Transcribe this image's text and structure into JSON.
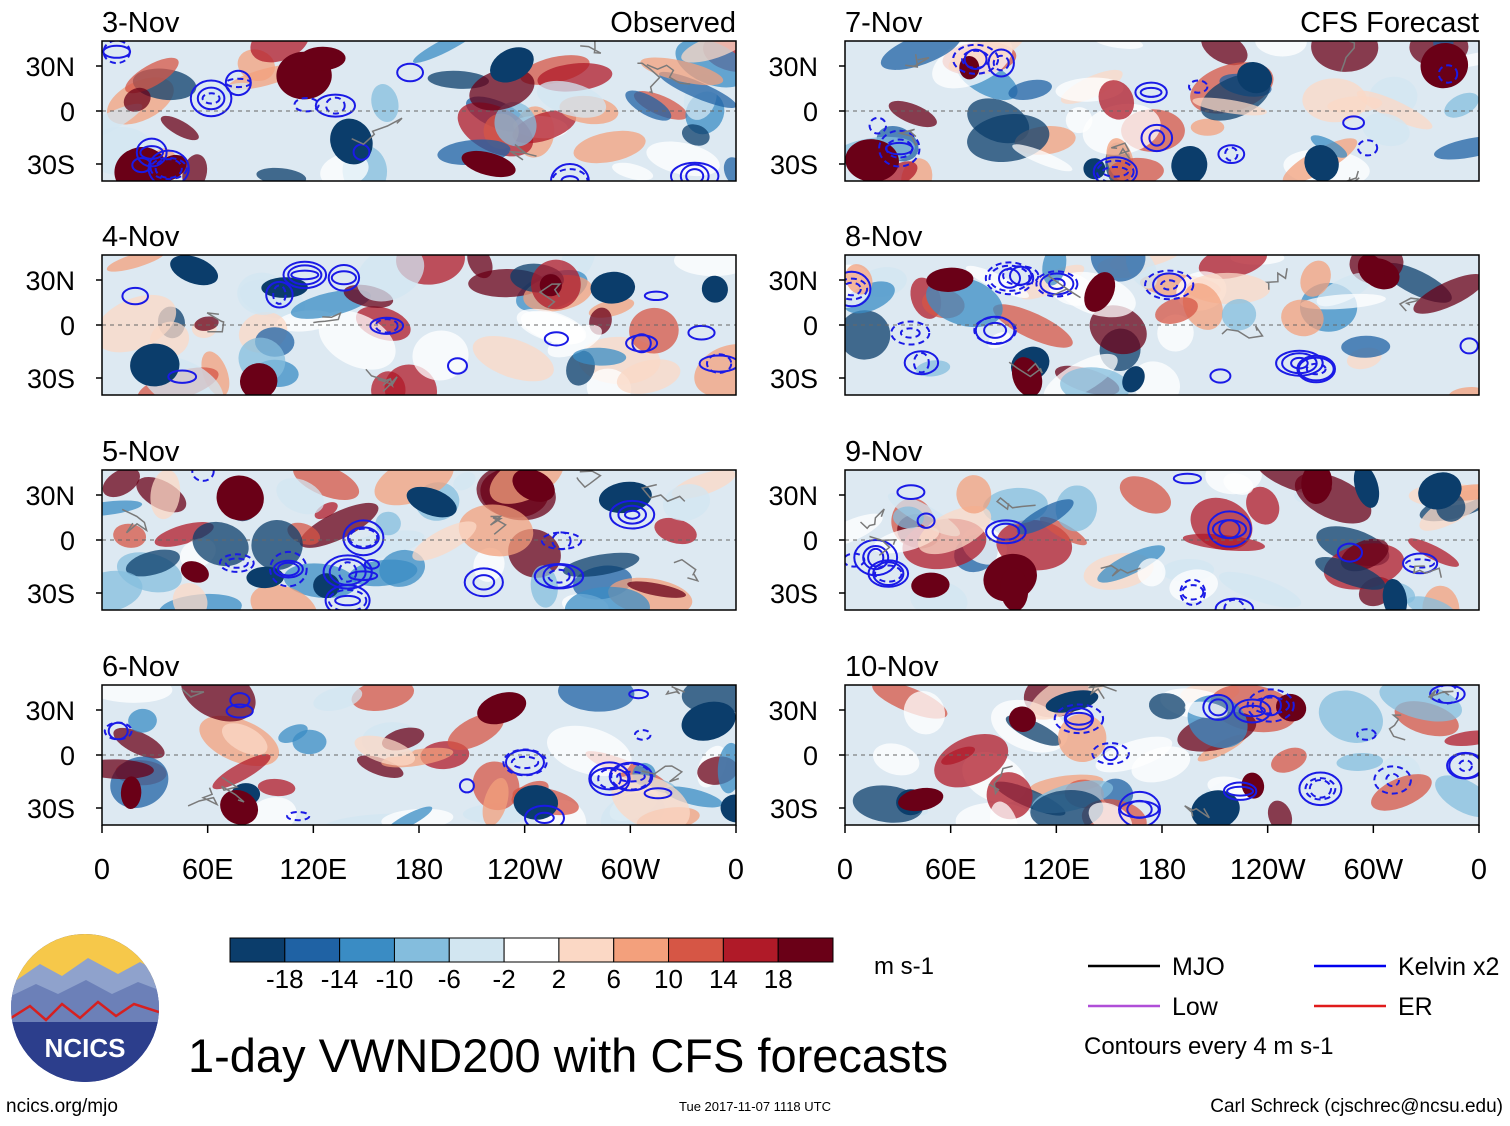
{
  "chart_data": {
    "type": "heatmap",
    "title": "1-day VWND200 with CFS forecasts",
    "units": "m s-1",
    "x_tick_labels": [
      "0",
      "60E",
      "120E",
      "180",
      "120W",
      "60W",
      "0"
    ],
    "y_tick_labels": [
      "30N",
      "0",
      "30S"
    ],
    "panels": [
      {
        "date": "3-Nov",
        "label": "Observed",
        "column": "observed"
      },
      {
        "date": "4-Nov",
        "label": "",
        "column": "observed"
      },
      {
        "date": "5-Nov",
        "label": "",
        "column": "observed"
      },
      {
        "date": "6-Nov",
        "label": "",
        "column": "observed"
      },
      {
        "date": "7-Nov",
        "label": "CFS Forecast",
        "column": "forecast"
      },
      {
        "date": "8-Nov",
        "label": "",
        "column": "forecast"
      },
      {
        "date": "9-Nov",
        "label": "",
        "column": "forecast"
      },
      {
        "date": "10-Nov",
        "label": "",
        "column": "forecast"
      }
    ],
    "colorbar": {
      "tick_labels": [
        "-18",
        "-14",
        "-10",
        "-6",
        "-2",
        "2",
        "6",
        "10",
        "14",
        "18"
      ],
      "colors": [
        "#0b3d6b",
        "#1f62a4",
        "#3a8cc4",
        "#84bddd",
        "#d2e6f1",
        "#ffffff",
        "#fbd8c5",
        "#f3a07c",
        "#d65645",
        "#b01a28",
        "#6a0017"
      ]
    },
    "legend": [
      {
        "label": "MJO",
        "color": "#000000"
      },
      {
        "label": "Kelvin x2",
        "color": "#0000ee"
      },
      {
        "label": "Low",
        "color": "#b04ed8"
      },
      {
        "label": "ER",
        "color": "#e01b1b"
      }
    ],
    "contour_note": "Contours every 4 m s-1"
  },
  "footer": {
    "website": "ncics.org/mjo",
    "timestamp": "Tue 2017-11-07 1118 UTC",
    "author": "Carl Schreck (cjschrec@ncsu.edu)"
  },
  "logo": {
    "text": "NCICS"
  }
}
